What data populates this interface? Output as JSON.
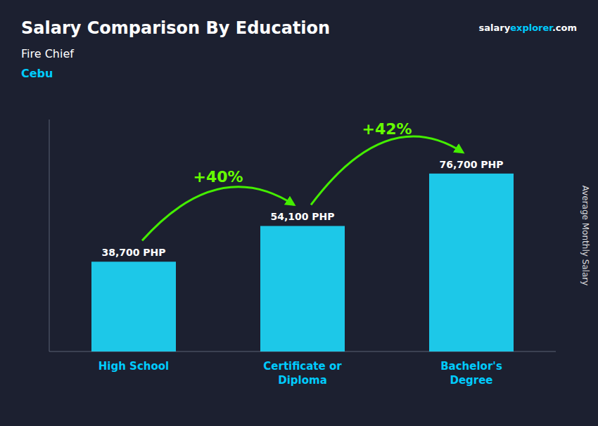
{
  "chart_data": {
    "type": "bar",
    "title": "Salary Comparison By Education",
    "subtitle": [
      "Fire Chief",
      "Cebu"
    ],
    "y_label": "Average Monthly Salary",
    "categories": [
      "High School",
      "Certificate or\nDiploma",
      "Bachelor's\nDegree"
    ],
    "values": [
      38700,
      54100,
      76700
    ],
    "value_labels": [
      "38,700 PHP",
      "54,100 PHP",
      "76,700 PHP"
    ],
    "data_labels": true,
    "color": "#1dc8e8",
    "ylim": [
      0,
      100000
    ],
    "grid": false,
    "tick_labels": "x",
    "annotations": [
      "+40%",
      "+42%",
      "salary",
      "explorer",
      ".com"
    ]
  }
}
